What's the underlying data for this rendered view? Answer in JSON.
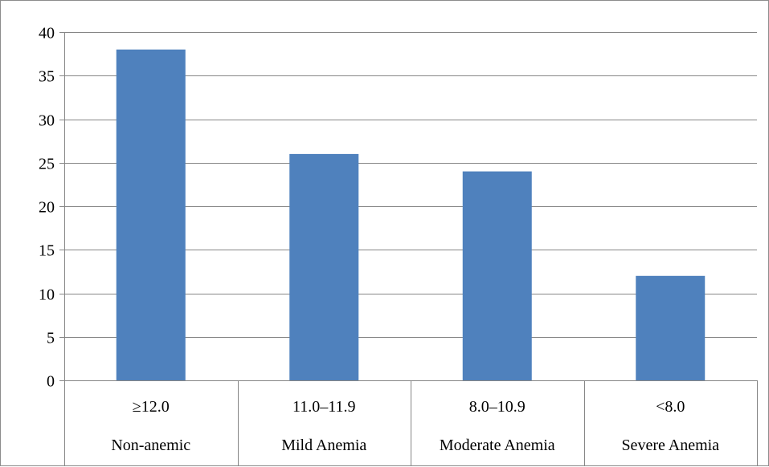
{
  "chart_data": {
    "type": "bar",
    "categories": [
      {
        "range": "≥12.0",
        "label": "Non-anemic"
      },
      {
        "range": "11.0–11.9",
        "label": "Mild Anemia"
      },
      {
        "range": "8.0–10.9",
        "label": "Moderate Anemia"
      },
      {
        "range": "<8.0",
        "label": "Severe Anemia"
      }
    ],
    "values": [
      38,
      26,
      24,
      12
    ],
    "title": "",
    "xlabel": "",
    "ylabel": "",
    "ylim": [
      0,
      40
    ],
    "yticks": [
      0,
      5,
      10,
      15,
      20,
      25,
      30,
      35,
      40
    ],
    "grid": true,
    "legend": "none",
    "bar_color": "#4f81bd",
    "gridline_color": "#868686"
  }
}
